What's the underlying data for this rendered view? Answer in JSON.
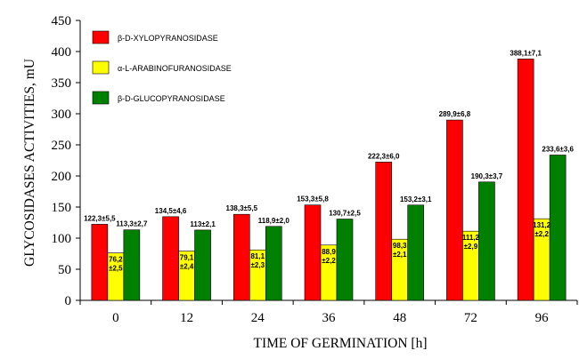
{
  "chart_data": {
    "type": "bar",
    "ylabel": "GLYCOSIDASES ACTIVITIES, mU",
    "xlabel": "TIME OF GERMINATION [h]",
    "ylim": [
      0,
      450
    ],
    "yticks": [
      0,
      50,
      100,
      150,
      200,
      250,
      300,
      350,
      400,
      450
    ],
    "grid": false,
    "legend_position": "top-left",
    "categories": [
      "0",
      "12",
      "24",
      "36",
      "48",
      "72",
      "96"
    ],
    "series": [
      {
        "name": "β-D-XYLOPYRANOSIDASE",
        "color": "#ff0000",
        "values": [
          122.3,
          134.5,
          138.3,
          153.3,
          222.3,
          289.9,
          388.1
        ],
        "labels": [
          "122,3±5,5",
          "134,5±4,6",
          "138,3±5,5",
          "153,3±5,8",
          "222,3±6,0",
          "289,9±6,8",
          "388,1±7,1"
        ]
      },
      {
        "name": "α-L-ARABINOFURANOSIDASE",
        "color": "#ffff00",
        "values": [
          76.2,
          79.1,
          81.1,
          88.9,
          98.3,
          111.2,
          131.2
        ],
        "labels": [
          "76,2\n±2,5",
          "79,1\n±2,4",
          "81,1\n±2,3",
          "88,9\n±2,2",
          "98,3\n±2,1",
          "111,2\n±2,9",
          "131,2\n±2,2"
        ]
      },
      {
        "name": "β-D-GLUCOPYRANOSIDASE",
        "color": "#008000",
        "values": [
          113.3,
          113.0,
          118.9,
          130.7,
          153.2,
          190.3,
          233.6
        ],
        "labels": [
          "113,3±2,7",
          "113±2,1",
          "118,9±2,0",
          "130,7±2,5",
          "153,2±3,1",
          "190,3±3,7",
          "233,6±3,6"
        ]
      }
    ]
  }
}
